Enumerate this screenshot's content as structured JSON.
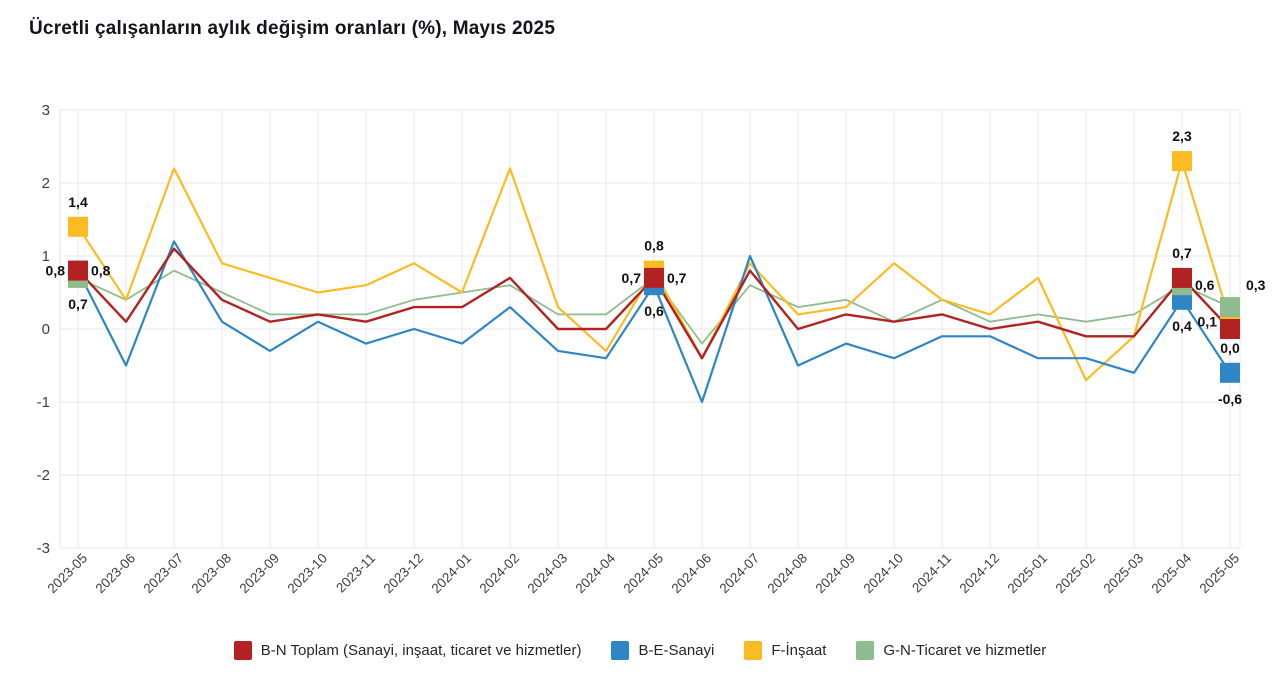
{
  "title": "Ücretli çalışanların aylık değişim oranları (%), Mayıs 2025",
  "chart_data": {
    "type": "line",
    "title": "Ücretli çalışanların aylık değişim oranları (%), Mayıs 2025",
    "xlabel": "",
    "ylabel": "",
    "ylim": [
      -3,
      3
    ],
    "grid": true,
    "legend_position": "bottom",
    "decimal_separator": ",",
    "y_ticks": [
      3,
      2,
      1,
      0,
      -1,
      -2,
      -3
    ],
    "x_categories": [
      "2023-05",
      "2023-06",
      "2023-07",
      "2023-08",
      "2023-09",
      "2023-10",
      "2023-11",
      "2023-12",
      "2024-01",
      "2024-02",
      "2024-03",
      "2024-04",
      "2024-05",
      "2024-06",
      "2024-07",
      "2024-08",
      "2024-09",
      "2024-10",
      "2024-11",
      "2024-12",
      "2025-01",
      "2025-02",
      "2025-03",
      "2025-04",
      "2025-05"
    ],
    "series": [
      {
        "id": "toplam",
        "name": "B-N Toplam (Sanayi, inşaat, ticaret ve hizmetler)",
        "color": "#B22222",
        "width": 2.4,
        "values": [
          0.8,
          0.1,
          1.1,
          0.4,
          0.1,
          0.2,
          0.1,
          0.3,
          0.3,
          0.7,
          0.0,
          0.0,
          0.7,
          -0.4,
          0.8,
          0.0,
          0.2,
          0.1,
          0.2,
          0.0,
          0.1,
          -0.1,
          -0.1,
          0.7,
          0.0
        ]
      },
      {
        "id": "sanayi",
        "name": "B-E-Sanayi",
        "color": "#2E86C4",
        "width": 2.2,
        "values": [
          0.8,
          -0.5,
          1.2,
          0.1,
          -0.3,
          0.1,
          -0.2,
          0.0,
          -0.2,
          0.3,
          -0.3,
          -0.4,
          0.6,
          -1.0,
          1.0,
          -0.5,
          -0.2,
          -0.4,
          -0.1,
          -0.1,
          -0.4,
          -0.4,
          -0.6,
          0.4,
          -0.6
        ]
      },
      {
        "id": "insaat",
        "name": "F-İnşaat",
        "color": "#FBBC23",
        "width": 2.2,
        "values": [
          1.4,
          0.4,
          2.2,
          0.9,
          0.7,
          0.5,
          0.6,
          0.9,
          0.5,
          2.2,
          0.3,
          -0.3,
          0.8,
          -0.4,
          0.9,
          0.2,
          0.3,
          0.9,
          0.4,
          0.2,
          0.7,
          -0.7,
          -0.1,
          2.3,
          0.1
        ]
      },
      {
        "id": "ticaret",
        "name": "G-N-Ticaret ve hizmetler",
        "color": "#8FBC8F",
        "width": 1.8,
        "values": [
          0.7,
          0.4,
          0.8,
          0.5,
          0.2,
          0.2,
          0.2,
          0.4,
          0.5,
          0.6,
          0.2,
          0.2,
          0.7,
          -0.2,
          0.6,
          0.3,
          0.4,
          0.1,
          0.4,
          0.1,
          0.2,
          0.1,
          0.2,
          0.6,
          0.3
        ]
      }
    ],
    "line_draw_order": [
      "ticaret",
      "insaat",
      "sanayi",
      "toplam"
    ],
    "highlight_markers": [
      {
        "x": 0,
        "points": [
          {
            "series": "insaat",
            "value": 1.4
          },
          {
            "series": "sanayi",
            "value": 0.8
          },
          {
            "series": "ticaret",
            "value": 0.7
          },
          {
            "series": "toplam",
            "value": 0.8
          }
        ]
      },
      {
        "x": 12,
        "points": [
          {
            "series": "insaat",
            "value": 0.8
          },
          {
            "series": "sanayi",
            "value": 0.6
          },
          {
            "series": "ticaret",
            "value": 0.7
          },
          {
            "series": "toplam",
            "value": 0.7
          }
        ]
      },
      {
        "x": 23,
        "points": [
          {
            "series": "insaat",
            "value": 2.3
          },
          {
            "series": "sanayi",
            "value": 0.4
          },
          {
            "series": "ticaret",
            "value": 0.6
          },
          {
            "series": "toplam",
            "value": 0.7
          }
        ]
      },
      {
        "x": 24,
        "points": [
          {
            "series": "sanayi",
            "value": -0.6
          },
          {
            "series": "insaat",
            "value": 0.1
          },
          {
            "series": "toplam",
            "value": 0.0
          },
          {
            "series": "ticaret",
            "value": 0.3
          }
        ]
      }
    ],
    "value_labels": [
      {
        "x": 0,
        "series": "insaat",
        "value": 1.4,
        "text": "1,4",
        "pos": "above"
      },
      {
        "x": 0,
        "series": "toplam",
        "value": 0.8,
        "text": "0,8",
        "pos": "left"
      },
      {
        "x": 0,
        "series": "sanayi",
        "value": 0.8,
        "text": "0,8",
        "pos": "right"
      },
      {
        "x": 0,
        "series": "ticaret",
        "value": 0.7,
        "text": "0,7",
        "pos": "below"
      },
      {
        "x": 12,
        "series": "insaat",
        "value": 0.8,
        "text": "0,8",
        "pos": "above"
      },
      {
        "x": 12,
        "series": "toplam",
        "value": 0.7,
        "text": "0,7",
        "pos": "left"
      },
      {
        "x": 12,
        "series": "ticaret",
        "value": 0.7,
        "text": "0,7",
        "pos": "right"
      },
      {
        "x": 12,
        "series": "sanayi",
        "value": 0.6,
        "text": "0,6",
        "pos": "below"
      },
      {
        "x": 23,
        "series": "insaat",
        "value": 2.3,
        "text": "2,3",
        "pos": "above"
      },
      {
        "x": 23,
        "series": "toplam",
        "value": 0.7,
        "text": "0,7",
        "pos": "above"
      },
      {
        "x": 23,
        "series": "ticaret",
        "value": 0.6,
        "text": "0,6",
        "pos": "right"
      },
      {
        "x": 23,
        "series": "sanayi",
        "value": 0.4,
        "text": "0,4",
        "pos": "below"
      },
      {
        "x": 24,
        "series": "ticaret",
        "value": 0.3,
        "text": "0,3",
        "pos": "above-right"
      },
      {
        "x": 24,
        "series": "insaat",
        "value": 0.1,
        "text": "0,1",
        "pos": "left"
      },
      {
        "x": 24,
        "series": "toplam",
        "value": 0.0,
        "text": "0,0",
        "pos": "below-near"
      },
      {
        "x": 24,
        "series": "sanayi",
        "value": -0.6,
        "text": "-0,6",
        "pos": "below"
      }
    ]
  },
  "legend": {
    "items": [
      {
        "label": "B-N Toplam (Sanayi, inşaat, ticaret ve hizmetler)",
        "color": "#B22222"
      },
      {
        "label": "B-E-Sanayi",
        "color": "#2E86C4"
      },
      {
        "label": "F-İnşaat",
        "color": "#FBBC23"
      },
      {
        "label": "G-N-Ticaret ve hizmetler",
        "color": "#8FBC8F"
      }
    ]
  }
}
